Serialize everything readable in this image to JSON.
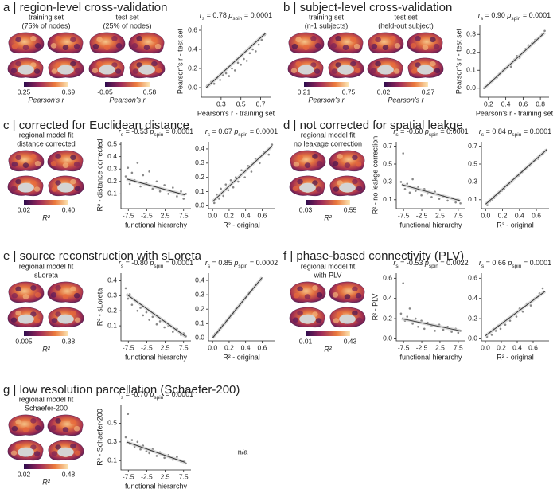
{
  "panels": [
    {
      "title": "a | region-level cross-validation",
      "brains": [
        {
          "caption": [
            "training set",
            "(75% of nodes)"
          ],
          "cbar": [
            "0.25",
            "0.69"
          ],
          "cbar_label": "Pearson's r"
        },
        {
          "caption": [
            "test set",
            "(25% of nodes)"
          ],
          "cbar": [
            "-0.05",
            "0.58"
          ],
          "cbar_label": "Pearson's r"
        }
      ]
    },
    {
      "title": "b | subject-level cross-validation",
      "brains": [
        {
          "caption": [
            "training set",
            "(n-1 subjects)"
          ],
          "cbar": [
            "0.21",
            "0.75"
          ],
          "cbar_label": "Pearson's r"
        },
        {
          "caption": [
            "test set",
            "(held-out subject)"
          ],
          "cbar": [
            "0.02",
            "0.27"
          ],
          "cbar_label": "Pearson's r"
        }
      ]
    },
    {
      "title": "c | corrected for Euclidean distance",
      "brains": [
        {
          "caption": [
            "regional model fit",
            "distance corrected"
          ],
          "cbar": [
            "0.02",
            "0.40"
          ],
          "cbar_label": "R²"
        }
      ]
    },
    {
      "title": "d | not corrected for spatial leakge",
      "brains": [
        {
          "caption": [
            "regional model fit",
            "no leakage correction"
          ],
          "cbar": [
            "0.03",
            "0.55"
          ],
          "cbar_label": "R²"
        }
      ]
    },
    {
      "title": "e | source reconstruction with sLoreta",
      "brains": [
        {
          "caption": [
            "regional model fit",
            "sLoreta"
          ],
          "cbar": [
            "0.005",
            "0.38"
          ],
          "cbar_label": "R²"
        }
      ]
    },
    {
      "title": "f | phase-based connectivity (PLV)",
      "brains": [
        {
          "caption": [
            "regional model fit",
            "with PLV"
          ],
          "cbar": [
            "0.01",
            "0.43"
          ],
          "cbar_label": "R²"
        }
      ]
    },
    {
      "title": "g | low resolution parcellation (Schaefer-200)",
      "brains": [
        {
          "caption": [
            "regional model fit",
            "Schaefer-200"
          ],
          "cbar": [
            "0.02",
            "0.48"
          ],
          "cbar_label": "R²"
        }
      ],
      "note": "n/a"
    }
  ],
  "chart_data": [
    {
      "type": "scatter",
      "stat": [
        {
          "text": "r",
          "italic": true
        },
        {
          "text": "s",
          "sub": true
        },
        {
          "text": " = 0.78 "
        },
        {
          "text": "p",
          "italic": true
        },
        {
          "text": "spin",
          "sub": true
        },
        {
          "text": " = 0.0001"
        }
      ],
      "xlabel": "Pearson's r - training set",
      "ylabel": "Pearson's r - test set",
      "xlim": [
        0.1,
        0.8
      ],
      "xticks": [
        0.3,
        0.5,
        0.7
      ],
      "ylim": [
        -0.1,
        0.65
      ],
      "yticks": [
        {
          "value": 0,
          "label": "0.0"
        },
        0.2,
        0.4,
        0.6
      ],
      "x": [
        0.16,
        0.2,
        0.23,
        0.26,
        0.29,
        0.32,
        0.35,
        0.38,
        0.41,
        0.44,
        0.47,
        0.5,
        0.53,
        0.56,
        0.59,
        0.62,
        0.65,
        0.68,
        0.71,
        0.74
      ],
      "y": [
        0.02,
        0.06,
        0.04,
        0.1,
        0.08,
        0.13,
        0.15,
        0.12,
        0.2,
        0.18,
        0.26,
        0.24,
        0.3,
        0.28,
        0.36,
        0.4,
        0.38,
        0.45,
        0.5,
        0.55
      ],
      "fit_x": [
        0.15,
        0.75
      ],
      "fit_y": [
        0.0,
        0.57
      ],
      "color": "#888888",
      "fit_color": "#333333"
    },
    {
      "type": "scatter",
      "stat": [
        {
          "text": "r",
          "italic": true
        },
        {
          "text": "s",
          "sub": true
        },
        {
          "text": " = 0.90 "
        },
        {
          "text": "p",
          "italic": true
        },
        {
          "text": "spin",
          "sub": true
        },
        {
          "text": " = 0.0001"
        }
      ],
      "xlabel": "Pearson's r - training set",
      "ylabel": "Pearson's r - test set",
      "xlim": [
        0.1,
        0.9
      ],
      "xticks": [
        0.2,
        0.4,
        0.6,
        0.8
      ],
      "ylim": [
        -0.05,
        0.35
      ],
      "yticks": [
        {
          "value": 0,
          "label": "0.0"
        },
        0.1,
        0.2,
        0.3
      ],
      "x": [
        0.15,
        0.2,
        0.25,
        0.3,
        0.33,
        0.37,
        0.4,
        0.43,
        0.46,
        0.5,
        0.53,
        0.56,
        0.6,
        0.63,
        0.66,
        0.7,
        0.74,
        0.78,
        0.82,
        0.85
      ],
      "y": [
        0.0,
        0.02,
        0.04,
        0.06,
        0.08,
        0.1,
        0.11,
        0.13,
        0.12,
        0.16,
        0.18,
        0.17,
        0.2,
        0.22,
        0.24,
        0.25,
        0.27,
        0.28,
        0.3,
        0.32
      ],
      "fit_x": [
        0.15,
        0.85
      ],
      "fit_y": [
        0.0,
        0.31
      ],
      "color": "#888888",
      "fit_color": "#333333"
    },
    {
      "type": "scatter",
      "stat": [
        {
          "text": "r",
          "italic": true
        },
        {
          "text": "s",
          "sub": true
        },
        {
          "text": " = -0.53 "
        },
        {
          "text": "p",
          "italic": true
        },
        {
          "text": "spin",
          "sub": true
        },
        {
          "text": " = 0.0001"
        }
      ],
      "xlabel": "functional hierarchy",
      "ylabel": "R² - distance corrected",
      "xlim": [
        -9.5,
        9.5
      ],
      "xticks": [
        -7.5,
        -2.5,
        2.5,
        7.5
      ],
      "ylim": [
        -0.02,
        0.52
      ],
      "yticks": [
        0.1,
        0.2,
        0.3,
        0.4,
        0.5
      ],
      "x": [
        -8.2,
        -7.6,
        -7.1,
        -6.5,
        -5.8,
        -5.0,
        -4.2,
        -3.5,
        -2.6,
        -1.8,
        -0.9,
        0.2,
        1.1,
        2.3,
        3.4,
        4.6,
        5.7,
        6.8,
        7.5,
        8.1
      ],
      "y": [
        0.24,
        0.31,
        0.18,
        0.27,
        0.21,
        0.35,
        0.16,
        0.25,
        0.19,
        0.28,
        0.14,
        0.2,
        0.12,
        0.17,
        0.1,
        0.15,
        0.08,
        0.12,
        0.06,
        0.1
      ],
      "fit_x": [
        -8,
        8
      ],
      "fit_y": [
        0.22,
        0.09
      ],
      "color": "#888888",
      "fit_color": "#333333"
    },
    {
      "type": "scatter",
      "stat": [
        {
          "text": "r",
          "italic": true
        },
        {
          "text": "s",
          "sub": true
        },
        {
          "text": " = 0.67 "
        },
        {
          "text": "p",
          "italic": true
        },
        {
          "text": "spin",
          "sub": true
        },
        {
          "text": " = 0.0001"
        }
      ],
      "xlabel": "R² - original",
      "xlim": [
        -0.05,
        0.75
      ],
      "xticks": [
        {
          "value": 0,
          "label": "0.0"
        },
        0.2,
        0.4,
        0.6
      ],
      "ylim": [
        -0.02,
        0.45
      ],
      "yticks": [
        {
          "value": 0,
          "label": "0.0"
        },
        0.1,
        0.2,
        0.3,
        0.4
      ],
      "x": [
        0.02,
        0.05,
        0.08,
        0.1,
        0.13,
        0.16,
        0.19,
        0.22,
        0.25,
        0.28,
        0.31,
        0.35,
        0.39,
        0.43,
        0.47,
        0.52,
        0.57,
        0.62,
        0.68,
        0.72
      ],
      "y": [
        0.02,
        0.08,
        0.05,
        0.12,
        0.07,
        0.15,
        0.11,
        0.18,
        0.13,
        0.2,
        0.17,
        0.25,
        0.2,
        0.28,
        0.24,
        0.33,
        0.3,
        0.38,
        0.36,
        0.43
      ],
      "fit_x": [
        0,
        0.72
      ],
      "fit_y": [
        0.03,
        0.42
      ],
      "color": "#888888",
      "fit_color": "#333333"
    },
    {
      "type": "scatter",
      "stat": [
        {
          "text": "r",
          "italic": true
        },
        {
          "text": "s",
          "sub": true
        },
        {
          "text": " = -0.60 "
        },
        {
          "text": "p",
          "italic": true
        },
        {
          "text": "spin",
          "sub": true
        },
        {
          "text": " = 0.0001"
        }
      ],
      "xlabel": "functional hierarchy",
      "ylabel": "R² - no leakge correction",
      "xlim": [
        -9.5,
        9.5
      ],
      "xticks": [
        -7.5,
        -2.5,
        2.5,
        7.5
      ],
      "ylim": [
        0,
        0.75
      ],
      "yticks": [
        0.1,
        0.3,
        0.5,
        0.7
      ],
      "x": [
        -8.2,
        -7.6,
        -7.1,
        -6.5,
        -5.8,
        -5.0,
        -4.2,
        -3.5,
        -2.6,
        -1.8,
        -0.9,
        0.2,
        1.1,
        2.3,
        3.4,
        4.6,
        5.7,
        6.8,
        7.5,
        8.1
      ],
      "y": [
        0.3,
        0.62,
        0.22,
        0.28,
        0.18,
        0.33,
        0.2,
        0.24,
        0.15,
        0.22,
        0.17,
        0.13,
        0.19,
        0.11,
        0.14,
        0.09,
        0.12,
        0.07,
        0.1,
        0.06
      ],
      "fit_x": [
        -8,
        8
      ],
      "fit_y": [
        0.27,
        0.09
      ],
      "color": "#888888",
      "fit_color": "#333333"
    },
    {
      "type": "scatter",
      "stat": [
        {
          "text": "r",
          "italic": true
        },
        {
          "text": "s",
          "sub": true
        },
        {
          "text": " = 0.84 "
        },
        {
          "text": "p",
          "italic": true
        },
        {
          "text": "spin",
          "sub": true
        },
        {
          "text": " = 0.0001"
        }
      ],
      "xlabel": "R² - original",
      "xlim": [
        -0.05,
        0.75
      ],
      "xticks": [
        {
          "value": 0,
          "label": "0.0"
        },
        0.2,
        0.4,
        0.6
      ],
      "ylim": [
        0,
        0.75
      ],
      "yticks": [
        0.1,
        0.3,
        0.5,
        0.7
      ],
      "x": [
        0.02,
        0.05,
        0.08,
        0.1,
        0.13,
        0.16,
        0.19,
        0.22,
        0.25,
        0.28,
        0.31,
        0.35,
        0.39,
        0.43,
        0.47,
        0.52,
        0.57,
        0.62,
        0.68,
        0.72
      ],
      "y": [
        0.04,
        0.08,
        0.1,
        0.12,
        0.15,
        0.17,
        0.2,
        0.22,
        0.26,
        0.28,
        0.3,
        0.34,
        0.37,
        0.41,
        0.44,
        0.48,
        0.53,
        0.56,
        0.62,
        0.66
      ],
      "fit_x": [
        0,
        0.72
      ],
      "fit_y": [
        0.05,
        0.66
      ],
      "color": "#888888",
      "fit_color": "#333333"
    },
    {
      "type": "scatter",
      "stat": [
        {
          "text": "r",
          "italic": true
        },
        {
          "text": "s",
          "sub": true
        },
        {
          "text": " = -0.80 "
        },
        {
          "text": "p",
          "italic": true
        },
        {
          "text": "spin",
          "sub": true
        },
        {
          "text": " = 0.0001"
        }
      ],
      "xlabel": "functional hierarchy",
      "ylabel": "R² - sLoreta",
      "xlim": [
        -9.5,
        9.5
      ],
      "xticks": [
        -7.5,
        -2.5,
        2.5,
        7.5
      ],
      "ylim": [
        0,
        0.45
      ],
      "yticks": [
        0.1,
        0.2,
        0.3,
        0.4
      ],
      "x": [
        -8.2,
        -7.6,
        -7.1,
        -6.5,
        -5.8,
        -5.0,
        -4.2,
        -3.5,
        -2.6,
        -1.8,
        -0.9,
        0.2,
        1.1,
        2.3,
        3.4,
        4.6,
        5.7,
        6.8,
        7.5,
        8.1
      ],
      "y": [
        0.35,
        0.28,
        0.31,
        0.24,
        0.27,
        0.2,
        0.22,
        0.17,
        0.19,
        0.14,
        0.16,
        0.11,
        0.13,
        0.09,
        0.1,
        0.06,
        0.08,
        0.04,
        0.05,
        0.03
      ],
      "fit_x": [
        -8,
        8
      ],
      "fit_y": [
        0.31,
        0.03
      ],
      "color": "#888888",
      "fit_color": "#333333"
    },
    {
      "type": "scatter",
      "stat": [
        {
          "text": "r",
          "italic": true
        },
        {
          "text": "s",
          "sub": true
        },
        {
          "text": " = 0.85 "
        },
        {
          "text": "p",
          "italic": true
        },
        {
          "text": "spin",
          "sub": true
        },
        {
          "text": " = 0.0002"
        }
      ],
      "xlabel": "R² - original",
      "xlim": [
        -0.05,
        0.75
      ],
      "xticks": [
        {
          "value": 0,
          "label": "0.0"
        },
        0.2,
        0.4,
        0.6
      ],
      "ylim": [
        -0.02,
        0.45
      ],
      "yticks": [
        {
          "value": 0,
          "label": "0.0"
        },
        0.1,
        0.2,
        0.3,
        0.4
      ],
      "x": [
        0.01,
        0.03,
        0.06,
        0.08,
        0.1,
        0.12,
        0.15,
        0.17,
        0.2,
        0.22,
        0.25,
        0.28,
        0.3,
        0.33,
        0.36,
        0.4,
        0.44,
        0.48,
        0.53,
        0.58
      ],
      "y": [
        0.01,
        0.03,
        0.04,
        0.06,
        0.07,
        0.09,
        0.1,
        0.12,
        0.14,
        0.16,
        0.17,
        0.2,
        0.21,
        0.23,
        0.25,
        0.28,
        0.31,
        0.33,
        0.37,
        0.4
      ],
      "fit_x": [
        0,
        0.6
      ],
      "fit_y": [
        0,
        0.42
      ],
      "color": "#888888",
      "fit_color": "#333333"
    },
    {
      "type": "scatter",
      "stat": [
        {
          "text": "r",
          "italic": true
        },
        {
          "text": "s",
          "sub": true
        },
        {
          "text": " = -0.53 "
        },
        {
          "text": "p",
          "italic": true
        },
        {
          "text": "spin",
          "sub": true
        },
        {
          "text": " = 0.0022"
        }
      ],
      "xlabel": "functional hierarchy",
      "ylabel": "R² - PLV",
      "xlim": [
        -9.5,
        9.5
      ],
      "xticks": [
        -7.5,
        -2.5,
        2.5,
        7.5
      ],
      "ylim": [
        -0.02,
        0.65
      ],
      "yticks": [
        {
          "value": 0,
          "label": "0.0"
        },
        0.2,
        0.4,
        0.6
      ],
      "x": [
        -8.2,
        -7.6,
        -7.1,
        -6.5,
        -5.8,
        -5.0,
        -4.2,
        -3.5,
        -2.6,
        -1.8,
        -0.9,
        0.2,
        1.1,
        2.3,
        3.4,
        4.6,
        5.7,
        6.8,
        7.5,
        8.1
      ],
      "y": [
        0.25,
        0.55,
        0.18,
        0.22,
        0.3,
        0.15,
        0.2,
        0.12,
        0.18,
        0.1,
        0.16,
        0.13,
        0.08,
        0.14,
        0.09,
        0.12,
        0.07,
        0.1,
        0.06,
        0.08
      ],
      "fit_x": [
        -8,
        8
      ],
      "fit_y": [
        0.2,
        0.08
      ],
      "color": "#888888",
      "fit_color": "#333333"
    },
    {
      "type": "scatter",
      "stat": [
        {
          "text": "r",
          "italic": true
        },
        {
          "text": "s",
          "sub": true
        },
        {
          "text": " = 0.66 "
        },
        {
          "text": "p",
          "italic": true
        },
        {
          "text": "spin",
          "sub": true
        },
        {
          "text": " = 0.0001"
        }
      ],
      "xlabel": "R² - original",
      "xlim": [
        -0.05,
        0.8
      ],
      "xticks": [
        {
          "value": 0,
          "label": "0.0"
        },
        0.2,
        0.4,
        0.6
      ],
      "ylim": [
        -0.02,
        0.65
      ],
      "yticks": [
        {
          "value": 0,
          "label": "0.0"
        },
        0.2,
        0.4,
        0.6
      ],
      "x": [
        0.02,
        0.05,
        0.08,
        0.1,
        0.13,
        0.16,
        0.19,
        0.22,
        0.25,
        0.28,
        0.31,
        0.35,
        0.39,
        0.43,
        0.47,
        0.52,
        0.57,
        0.62,
        0.68,
        0.72
      ],
      "y": [
        0.02,
        0.06,
        0.04,
        0.1,
        0.08,
        0.13,
        0.1,
        0.16,
        0.14,
        0.2,
        0.18,
        0.24,
        0.22,
        0.3,
        0.27,
        0.35,
        0.33,
        0.4,
        0.45,
        0.5
      ],
      "fit_x": [
        0,
        0.75
      ],
      "fit_y": [
        0.03,
        0.47
      ],
      "color": "#888888",
      "fit_color": "#333333"
    },
    {
      "type": "scatter",
      "stat": [
        {
          "text": "r",
          "italic": true
        },
        {
          "text": "s",
          "sub": true
        },
        {
          "text": " = -0.70 "
        },
        {
          "text": "p",
          "italic": true
        },
        {
          "text": "spin",
          "sub": true
        },
        {
          "text": " = 0.0001"
        }
      ],
      "xlabel": "functional hierarchy",
      "ylabel": "R² - Schaefer-200",
      "xlim": [
        -9.5,
        9.5
      ],
      "xticks": [
        -7.5,
        -2.5,
        2.5,
        7.5
      ],
      "ylim": [
        0,
        0.7
      ],
      "yticks": [
        0.1,
        0.3,
        0.5
      ],
      "x": [
        -8.2,
        -7.6,
        -7.1,
        -6.5,
        -5.8,
        -5.0,
        -4.2,
        -3.5,
        -2.6,
        -1.8,
        -0.9,
        0.2,
        1.1,
        2.3,
        3.4,
        4.6,
        5.7,
        6.8,
        7.5,
        8.1
      ],
      "y": [
        0.35,
        0.6,
        0.28,
        0.32,
        0.25,
        0.3,
        0.22,
        0.26,
        0.2,
        0.18,
        0.22,
        0.15,
        0.19,
        0.13,
        0.16,
        0.11,
        0.14,
        0.09,
        0.1,
        0.07
      ],
      "fit_x": [
        -8,
        8
      ],
      "fit_y": [
        0.3,
        0.08
      ],
      "color": "#888888",
      "fit_color": "#333333"
    }
  ]
}
